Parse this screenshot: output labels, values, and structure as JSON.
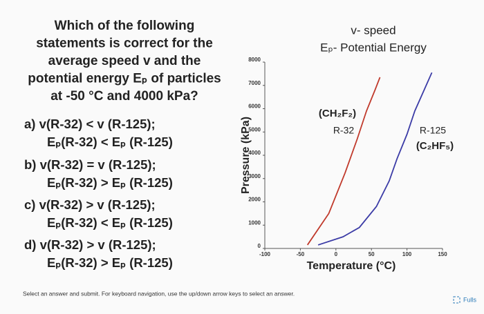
{
  "question": {
    "lines": [
      "Which of the following",
      "statements is correct for the",
      "average speed v and the",
      "potential energy Eₚ of particles",
      "at -50 °C and 4000 kPa?"
    ]
  },
  "options": [
    {
      "lines": [
        "a) v(R-32) < v (R-125);",
        "Eₚ(R-32) < Eₚ (R-125)"
      ]
    },
    {
      "lines": [
        "b) v(R-32) = v (R-125);",
        "Eₚ(R-32) > Eₚ (R-125)"
      ]
    },
    {
      "lines": [
        "c) v(R-32) > v (R-125);",
        "Eₚ(R-32) < Eₚ (R-125)"
      ]
    },
    {
      "lines": [
        "d) v(R-32) > v (R-125);",
        "Eₚ(R-32) > Eₚ (R-125)"
      ]
    }
  ],
  "legend_notes": [
    "v- speed",
    "Eₚ- Potential Energy"
  ],
  "footer": {
    "instructions": "Select an answer and submit. For keyboard navigation, use the up/down arrow keys to select an answer.",
    "button": "Fulls"
  },
  "chart_data": {
    "type": "line",
    "xlabel": "Temperature (°C)",
    "ylabel": "Pressure (kPa)",
    "xlim": [
      -100,
      150
    ],
    "xticks": [
      -100,
      -50,
      0,
      50,
      100,
      150
    ],
    "ylim": [
      0,
      8000
    ],
    "yticks": [
      0,
      1000,
      2000,
      3000,
      4000,
      5000,
      6000,
      7000,
      8000
    ],
    "annotations": [
      "(CH₂F₂)",
      "(C₂HF₅)"
    ],
    "series": [
      {
        "name": "R-32",
        "color": "#c0392b",
        "x": [
          -40,
          -10,
          13,
          30,
          43,
          55,
          62
        ],
        "values": [
          150,
          1500,
          3250,
          4700,
          5900,
          6800,
          7350
        ]
      },
      {
        "name": "R-125",
        "color": "#3b3ba6",
        "x": [
          -25,
          10,
          33,
          57,
          75,
          86,
          100,
          111,
          135
        ],
        "values": [
          150,
          500,
          900,
          1800,
          2900,
          3850,
          4900,
          5900,
          7550
        ]
      }
    ]
  }
}
